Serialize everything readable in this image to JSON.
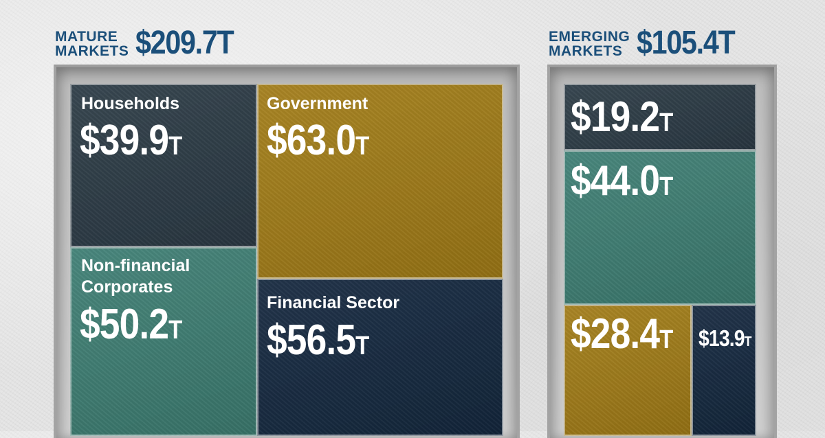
{
  "colors": {
    "households": "#2c3b46",
    "government": "#a37d17",
    "non_financial_corporates": "#3e7f74",
    "financial_sector": "#14283f",
    "header_text": "#1b4f7a"
  },
  "mature": {
    "label": "MATURE\nMARKETS",
    "total_text": "$209.7T"
  },
  "emerging": {
    "label": "EMERGING\nMARKETS",
    "total_text": "$105.4T"
  },
  "chart_data": [
    {
      "type": "treemap",
      "title": "MATURE MARKETS",
      "total": 209.7,
      "unit": "T",
      "items": [
        {
          "name": "Households",
          "value": 39.9,
          "value_text": "$39.9",
          "color": "#2c3b46"
        },
        {
          "name": "Government",
          "value": 63.0,
          "value_text": "$63.0",
          "color": "#a37d17"
        },
        {
          "name": "Non-financial\nCorporates",
          "value": 50.2,
          "value_text": "$50.2",
          "color": "#3e7f74"
        },
        {
          "name": "Financial Sector",
          "value": 56.5,
          "value_text": "$56.5",
          "color": "#14283f"
        }
      ]
    },
    {
      "type": "treemap",
      "title": "EMERGING MARKETS",
      "total": 105.4,
      "unit": "T",
      "items": [
        {
          "name": "",
          "value": 19.2,
          "value_text": "$19.2",
          "color": "#2c3b46"
        },
        {
          "name": "",
          "value": 44.0,
          "value_text": "$44.0",
          "color": "#3e7f74"
        },
        {
          "name": "",
          "value": 28.4,
          "value_text": "$28.4",
          "color": "#a37d17"
        },
        {
          "name": "",
          "value": 13.9,
          "value_text": "$13.9",
          "color": "#14283f"
        }
      ]
    }
  ]
}
